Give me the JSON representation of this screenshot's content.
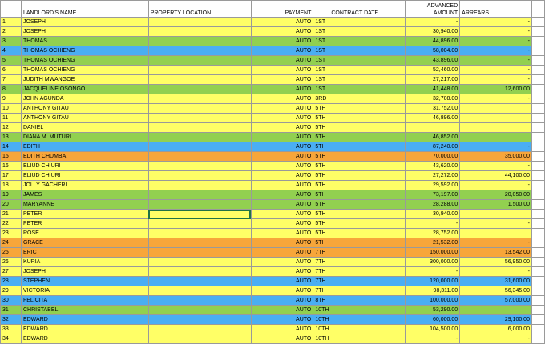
{
  "columns": {
    "landlord": "LANDLORD'S NAME",
    "property": "PROPERTY LOCATION",
    "payment": "PAYMENT",
    "contract": "CONTRACT DATE",
    "advanced_line1": "ADVANCED",
    "advanced_line2": "AMOUNT",
    "arrears": "ARREARS"
  },
  "row_colors": {
    "yellow": "#ffff66",
    "green": "#92d050",
    "blue": "#4aaef3",
    "orange": "#f7a63a"
  },
  "rows": [
    {
      "no": "1",
      "name": "JOSEPH",
      "property": "",
      "payment": "AUTO",
      "contract": "1ST",
      "advanced": "-",
      "arrears": "-",
      "color": "yellow"
    },
    {
      "no": "2",
      "name": "JOSEPH",
      "property": "",
      "payment": "AUTO",
      "contract": "1ST",
      "advanced": "30,940.00",
      "arrears": "-",
      "color": "yellow"
    },
    {
      "no": "3",
      "name": "THOMAS",
      "property": "",
      "payment": "AUTO",
      "contract": "1ST",
      "advanced": "44,896.00",
      "arrears": "-",
      "color": "green"
    },
    {
      "no": "4",
      "name": "THOMAS OCHIENG",
      "property": "",
      "payment": "AUTO",
      "contract": "1ST",
      "advanced": "58,004.00",
      "arrears": "-",
      "color": "blue"
    },
    {
      "no": "5",
      "name": "THOMAS OCHIENG",
      "property": "",
      "payment": "AUTO",
      "contract": "1ST",
      "advanced": "43,896.00",
      "arrears": "-",
      "color": "green"
    },
    {
      "no": "6",
      "name": "THOMAS OCHIENG",
      "property": "",
      "payment": "AUTO",
      "contract": "1ST",
      "advanced": "52,460.00",
      "arrears": "-",
      "color": "yellow"
    },
    {
      "no": "7",
      "name": "JUDITH MWANGOE",
      "property": "",
      "payment": "AUTO",
      "contract": "1ST",
      "advanced": "27,217.00",
      "arrears": "-",
      "color": "yellow"
    },
    {
      "no": "8",
      "name": "JACQUELINE OSONGO",
      "property": "",
      "payment": "AUTO",
      "contract": "1ST",
      "advanced": "41,448.00",
      "arrears": "12,600.00",
      "color": "green"
    },
    {
      "no": "9",
      "name": "JOHN AGUNDA",
      "property": "",
      "payment": "AUTO",
      "contract": "3RD",
      "advanced": "32,708.00",
      "arrears": "-",
      "color": "yellow"
    },
    {
      "no": "10",
      "name": "ANTHONY GITAU",
      "property": "",
      "payment": "AUTO",
      "contract": "5TH",
      "advanced": "31,752.00",
      "arrears": "",
      "color": "yellow"
    },
    {
      "no": "11",
      "name": "ANTHONY GITAU",
      "property": "",
      "payment": "AUTO",
      "contract": "5TH",
      "advanced": "46,896.00",
      "arrears": "",
      "color": "yellow"
    },
    {
      "no": "12",
      "name": "DANIEL",
      "property": "",
      "payment": "AUTO",
      "contract": "5TH",
      "advanced": "",
      "arrears": "",
      "color": "yellow"
    },
    {
      "no": "13",
      "name": "DIANA M. MUTURI",
      "property": "",
      "payment": "AUTO",
      "contract": "5TH",
      "advanced": "46,852.00",
      "arrears": "",
      "color": "green"
    },
    {
      "no": "14",
      "name": "EDITH",
      "property": "",
      "payment": "AUTO",
      "contract": "5TH",
      "advanced": "87,240.00",
      "arrears": "-",
      "color": "blue"
    },
    {
      "no": "15",
      "name": "EDITH CHUMBA",
      "property": "",
      "payment": "AUTO",
      "contract": "5TH",
      "advanced": "70,000.00",
      "arrears": "35,000.00",
      "color": "orange"
    },
    {
      "no": "16",
      "name": "ELIUD CHIURI",
      "property": "",
      "payment": "AUTO",
      "contract": "5TH",
      "advanced": "43,620.00",
      "arrears": "-",
      "color": "yellow"
    },
    {
      "no": "17",
      "name": "ELIUD CHIURI",
      "property": "",
      "payment": "AUTO",
      "contract": "5TH",
      "advanced": "27,272.00",
      "arrears": "44,100.00",
      "color": "yellow"
    },
    {
      "no": "18",
      "name": "JOLLY GACHERI",
      "property": "",
      "payment": "AUTO",
      "contract": "5TH",
      "advanced": "29,592.00",
      "arrears": "-",
      "color": "yellow"
    },
    {
      "no": "19",
      "name": "JAMES",
      "property": "",
      "payment": "AUTO",
      "contract": "5TH",
      "advanced": "73,197.00",
      "arrears": "20,050.00",
      "color": "green"
    },
    {
      "no": "20",
      "name": "MARYANNE",
      "property": "",
      "payment": "AUTO",
      "contract": "5TH",
      "advanced": "28,288.00",
      "arrears": "1,500.00",
      "color": "green"
    },
    {
      "no": "21",
      "name": "PETER",
      "property": "",
      "payment": "AUTO",
      "contract": "5TH",
      "advanced": "30,940.00",
      "arrears": "",
      "color": "yellow"
    },
    {
      "no": "22",
      "name": "PETER",
      "property": "",
      "payment": "AUTO",
      "contract": "5TH",
      "advanced": "-",
      "arrears": "-",
      "color": "yellow"
    },
    {
      "no": "23",
      "name": "ROSE",
      "property": "",
      "payment": "AUTO",
      "contract": "5TH",
      "advanced": "28,752.00",
      "arrears": "",
      "color": "yellow"
    },
    {
      "no": "24",
      "name": "GRACE",
      "property": "",
      "payment": "AUTO",
      "contract": "5TH",
      "advanced": "21,532.00",
      "arrears": "-",
      "color": "orange"
    },
    {
      "no": "25",
      "name": "ERIC",
      "property": "",
      "payment": "AUTO",
      "contract": "7TH",
      "advanced": "150,000.00",
      "arrears": "13,542.00",
      "color": "orange"
    },
    {
      "no": "26",
      "name": "KURIA",
      "property": "",
      "payment": "AUTO",
      "contract": "7TH",
      "advanced": "300,000.00",
      "arrears": "56,950.00",
      "color": "yellow"
    },
    {
      "no": "27",
      "name": "JOSEPH",
      "property": "",
      "payment": "AUTO",
      "contract": "7TH",
      "advanced": "-",
      "arrears": "-",
      "color": "yellow"
    },
    {
      "no": "28",
      "name": "STEPHEN",
      "property": "",
      "payment": "AUTO",
      "contract": "7TH",
      "advanced": "120,000.00",
      "arrears": "31,600.00",
      "color": "blue"
    },
    {
      "no": "29",
      "name": "VICTORIA",
      "property": "",
      "payment": "AUTO",
      "contract": "7TH",
      "advanced": "98,311.00",
      "arrears": "56,345.00",
      "color": "yellow"
    },
    {
      "no": "30",
      "name": "FELICITA",
      "property": "",
      "payment": "AUTO",
      "contract": "8TH",
      "advanced": "100,000.00",
      "arrears": "57,000.00",
      "color": "blue"
    },
    {
      "no": "31",
      "name": "CHRISTABEL",
      "property": "",
      "payment": "AUTO",
      "contract": "10TH",
      "advanced": "53,290.00",
      "arrears": "",
      "color": "green"
    },
    {
      "no": "32",
      "name": "EDWARD",
      "property": "",
      "payment": "AUTO",
      "contract": "10TH",
      "advanced": "60,000.00",
      "arrears": "29,100.00",
      "color": "blue"
    },
    {
      "no": "33",
      "name": "EDWARD",
      "property": "",
      "payment": "AUTO",
      "contract": "10TH",
      "advanced": "104,500.00",
      "arrears": "6,000.00",
      "color": "yellow"
    },
    {
      "no": "34",
      "name": "EDWARD",
      "property": "",
      "payment": "AUTO",
      "contract": "10TH",
      "advanced": "-",
      "arrears": "-",
      "color": "yellow"
    }
  ],
  "selected_row": "21"
}
